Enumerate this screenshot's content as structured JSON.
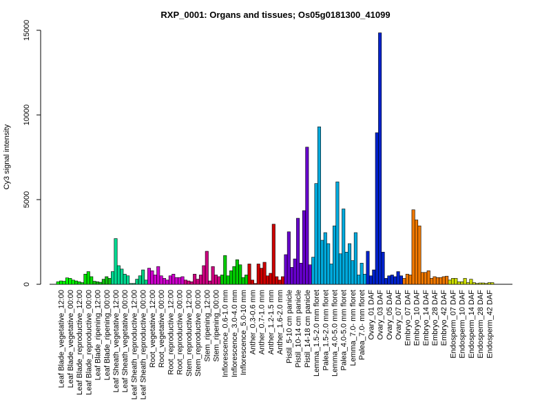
{
  "chart_data": {
    "type": "bar",
    "title": "RXP_0001: Organs and tissues; Os05g0181300_41099",
    "ylabel": "Cy3 signal intensity",
    "xlabel": "",
    "ylim": [
      0,
      15000
    ],
    "yticks": [
      0,
      5000,
      10000,
      15000
    ],
    "grid": false,
    "legend": "none",
    "categories": [
      "Leaf Blade_vegetative_12:00",
      "Leaf Blade_vegetative_00:00",
      "Leaf Blade_reproductive_12:00",
      "Leaf Blade_reproductive_00:00",
      "Leaf Blade_ripening_12:00",
      "Leaf Blade_ripening_00:00",
      "Leaf Sheath_vegetative_12:00",
      "Leaf Sheath_vegetative_00:00",
      "Leaf Sheath_reproductive_12:00",
      "Leaf Sheath_reproductive_00:00",
      "Root_vegetative_12:00",
      "Root_vegetative_00:00",
      "Root_reproductive_12:00",
      "Root_reproductive_00:00",
      "Stem_reproductive_12:00",
      "Stem_reproductive_00:00",
      "Stem_ripening_12:00",
      "Stem_ripening_00:00",
      "Inflorescence_0.6-1.0 mm",
      "Inflorescence_3.0-4.0 mm",
      "Inflorescence_5.0-10 mm",
      "Anther_0.3-0.6 mm",
      "Anther_0.7-1.0 mm",
      "Anther_1.2-1.5 mm",
      "Anther_1.6-2.0 mm",
      "Pistil_5-10 cm panicle",
      "Pistil_10-14 cm panicle",
      "Pistil_14-18 cm panicle",
      "Lemma_1.5-2.0 mm floret",
      "Palea_1.5-2.0 mm floret",
      "Lemma_4.0-5.0 mm floret",
      "Palea_4.0-5.0 mm floret",
      "Lemma_7.0- mm floret",
      "Palea_7.0- mm floret",
      "Ovary_01 DAF",
      "Ovary_03 DAF",
      "Ovary_05 DAF",
      "Ovary_07 DAF",
      "Embryo_07 DAF",
      "Embryo_10 DAF",
      "Embryo_14 DAF",
      "Embryo_28 DAF",
      "Embryo_42 DAF",
      "Endosperm_07 DAF",
      "Endosperm_10 DAF",
      "Endosperm_14 DAF",
      "Endosperm_28 DAF",
      "Endosperm_42 DAF"
    ],
    "values": [
      [
        150,
        200,
        180
      ],
      [
        380,
        350,
        250
      ],
      [
        200,
        150,
        100
      ],
      [
        600,
        750,
        450
      ],
      [
        180,
        150,
        120
      ],
      [
        300,
        450,
        350
      ],
      [
        750,
        2700,
        1100
      ],
      [
        900,
        600,
        500
      ],
      [
        50,
        50,
        300
      ],
      [
        500,
        850,
        250
      ],
      [
        950,
        800,
        550
      ],
      [
        1050,
        500,
        350
      ],
      [
        250,
        500,
        600
      ],
      [
        400,
        400,
        450
      ],
      [
        250,
        200,
        150
      ],
      [
        600,
        300,
        550
      ],
      [
        1100,
        1950,
        200
      ],
      [
        1050,
        550,
        450
      ],
      [
        550,
        1700,
        500
      ],
      [
        800,
        1050,
        1450
      ],
      [
        1150,
        400,
        550
      ],
      [
        1200,
        250,
        50
      ],
      [
        1200,
        950,
        1300
      ],
      [
        500,
        650,
        3550
      ],
      [
        450,
        250,
        450
      ],
      [
        1750,
        3100,
        1000
      ],
      [
        1500,
        3900,
        1250
      ],
      [
        4350,
        8100,
        1150
      ],
      [
        1600,
        5950,
        9300
      ],
      [
        2600,
        3050,
        2400
      ],
      [
        1200,
        3450,
        6050
      ],
      [
        1800,
        4450,
        1900
      ],
      [
        2400,
        1400,
        3050
      ],
      [
        550,
        1250,
        600
      ],
      [
        1950,
        500,
        850
      ],
      [
        8950,
        14850,
        1900
      ],
      [
        350,
        500,
        550
      ],
      [
        450,
        750,
        500
      ],
      [
        350,
        600,
        550
      ],
      [
        4400,
        3800,
        3450
      ],
      [
        700,
        700,
        800
      ],
      [
        350,
        450,
        400
      ],
      [
        400,
        450,
        480
      ],
      [
        250,
        350,
        350
      ],
      [
        150,
        150,
        350
      ],
      [
        100,
        300,
        100
      ],
      [
        50,
        80,
        80
      ],
      [
        50,
        100,
        100
      ]
    ],
    "colors": [
      "#00FF00",
      "#00FF00",
      "#00E000",
      "#00E000",
      "#10C010",
      "#10C010",
      "#00D890",
      "#00D890",
      "#00CC80",
      "#00CC80",
      "#CC00CC",
      "#CC00CC",
      "#CC00CC",
      "#CC00CC",
      "#CC0080",
      "#CC0080",
      "#CC0080",
      "#CC0080",
      "#00CC00",
      "#00CC00",
      "#00CC00",
      "#CC0000",
      "#CC0000",
      "#CC0000",
      "#CC0000",
      "#6600CC",
      "#6600CC",
      "#6600CC",
      "#00AADD",
      "#00AADD",
      "#00AADD",
      "#00AADD",
      "#00AADD",
      "#00AADD",
      "#0022CC",
      "#0022CC",
      "#0022CC",
      "#0022CC",
      "#EE7700",
      "#EE7700",
      "#EE7700",
      "#EE7700",
      "#EE7700",
      "#CCDD00",
      "#CCDD00",
      "#CCDD00",
      "#CCDD00",
      "#CCDD00"
    ]
  }
}
